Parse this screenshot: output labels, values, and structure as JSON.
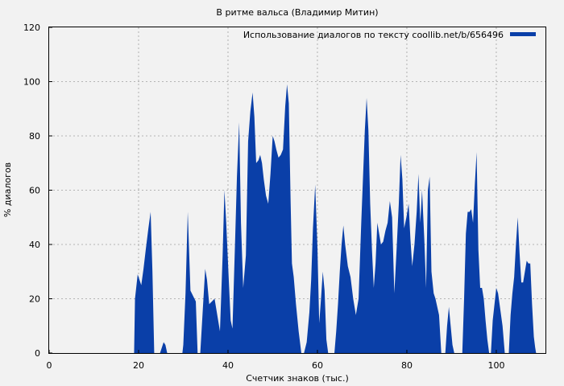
{
  "chart_data": {
    "type": "area",
    "title": "В ритме вальса (Владимир Митин)",
    "xlabel": "Счетчик знаков (тыс.)",
    "ylabel": "% диалогов",
    "xlim": [
      0,
      111
    ],
    "ylim": [
      0,
      120
    ],
    "xticks": [
      0,
      20,
      40,
      60,
      80,
      100
    ],
    "yticks": [
      0,
      20,
      40,
      60,
      80,
      100,
      120
    ],
    "grid": true,
    "legend_position": "top-right",
    "series": [
      {
        "name": "Использование диалогов по тексту coollib.net/b/656496",
        "color": "#0a3fa8",
        "x": [
          0,
          19,
          19.2,
          19.8,
          20.2,
          20.6,
          21.1,
          21.6,
          22.2,
          22.7,
          23.1,
          23.5,
          24.0,
          24.8,
          25.2,
          25.6,
          26.0,
          26.4,
          26.8,
          29.8,
          30.0,
          30.5,
          31.0,
          31.6,
          32.2,
          32.8,
          33.2,
          33.8,
          34.4,
          34.9,
          35.3,
          35.8,
          36.4,
          37.0,
          37.6,
          38.2,
          38.8,
          39.2,
          39.6,
          40.2,
          40.6,
          41.0,
          41.6,
          42.0,
          42.5,
          42.9,
          43.4,
          44.0,
          44.5,
          45.0,
          45.5,
          45.9,
          46.3,
          46.8,
          47.2,
          47.6,
          48.0,
          48.5,
          49.0,
          49.5,
          50.0,
          50.4,
          50.8,
          51.3,
          51.8,
          52.3,
          52.8,
          53.2,
          53.6,
          54.0,
          54.3,
          54.7,
          55.2,
          55.8,
          56.4,
          57.0,
          57.6,
          58.2,
          58.6,
          59.0,
          59.5,
          60.0,
          60.4,
          60.8,
          61.2,
          61.6,
          62.0,
          62.4,
          62.8,
          63.2,
          63.8,
          64.2,
          64.6,
          65.0,
          65.4,
          65.8,
          66.2,
          66.8,
          67.4,
          68.0,
          68.6,
          69.2,
          69.8,
          70.2,
          70.6,
          71.0,
          71.4,
          71.8,
          72.2,
          72.6,
          73.0,
          73.4,
          73.8,
          74.2,
          74.7,
          75.2,
          75.7,
          76.2,
          76.7,
          77.2,
          77.7,
          78.2,
          78.6,
          79.0,
          79.4,
          79.9,
          80.4,
          80.8,
          81.2,
          81.7,
          82.2,
          82.6,
          83.0,
          83.4,
          83.9,
          84.3,
          84.7,
          85.1,
          85.5,
          86.0,
          86.4,
          86.8,
          87.2,
          87.7,
          88.2,
          88.6,
          89.0,
          89.4,
          89.8,
          90.2,
          90.6,
          91.0,
          91.4,
          92.0,
          92.4,
          92.8,
          93.2,
          93.6,
          94.0,
          94.4,
          94.8,
          95.2,
          95.6,
          96.0,
          96.4,
          96.8,
          97.2,
          97.6,
          98.0,
          98.4,
          98.8,
          99.2,
          99.6,
          100.0,
          100.4,
          100.9,
          101.4,
          101.9,
          102.4,
          102.8,
          103.2,
          103.6,
          104.0,
          104.4,
          104.8,
          105.2,
          105.6,
          106.0,
          106.4,
          106.8,
          107.2,
          107.6,
          108.0,
          108.4,
          108.7,
          108.9,
          111
        ],
        "y": [
          0,
          0,
          20,
          29,
          27,
          25,
          31,
          38,
          46,
          52,
          30,
          0,
          0,
          0,
          2,
          4,
          3,
          0,
          0,
          0,
          3,
          22,
          52,
          23,
          21,
          19,
          0,
          0,
          17,
          31,
          27,
          18,
          19,
          20,
          14,
          8,
          36,
          60,
          48,
          26,
          12,
          9,
          42,
          65,
          85,
          48,
          24,
          36,
          78,
          89,
          96,
          87,
          70,
          71,
          73,
          70,
          64,
          58,
          55,
          66,
          80,
          78,
          75,
          72,
          73,
          75,
          91,
          99,
          92,
          56,
          33,
          28,
          18,
          8,
          0,
          0,
          4,
          15,
          27,
          46,
          62,
          39,
          11,
          20,
          30,
          23,
          5,
          0,
          0,
          0,
          0,
          8,
          18,
          30,
          40,
          47,
          40,
          32,
          28,
          20,
          14,
          20,
          48,
          65,
          82,
          94,
          82,
          55,
          38,
          24,
          33,
          48,
          44,
          40,
          41,
          45,
          48,
          56,
          50,
          22,
          38,
          55,
          73,
          64,
          46,
          50,
          55,
          42,
          32,
          40,
          52,
          66,
          48,
          60,
          42,
          24,
          60,
          65,
          30,
          22,
          20,
          17,
          14,
          0,
          0,
          0,
          10,
          17,
          10,
          3,
          0,
          0,
          0,
          0,
          0,
          20,
          44,
          52,
          52,
          53,
          48,
          62,
          74,
          38,
          24,
          24,
          20,
          12,
          5,
          0,
          0,
          12,
          18,
          24,
          22,
          16,
          10,
          0,
          0,
          0,
          14,
          22,
          28,
          40,
          50,
          37,
          26,
          26,
          30,
          34,
          33,
          33,
          18,
          6,
          2,
          0,
          0
        ]
      }
    ]
  }
}
